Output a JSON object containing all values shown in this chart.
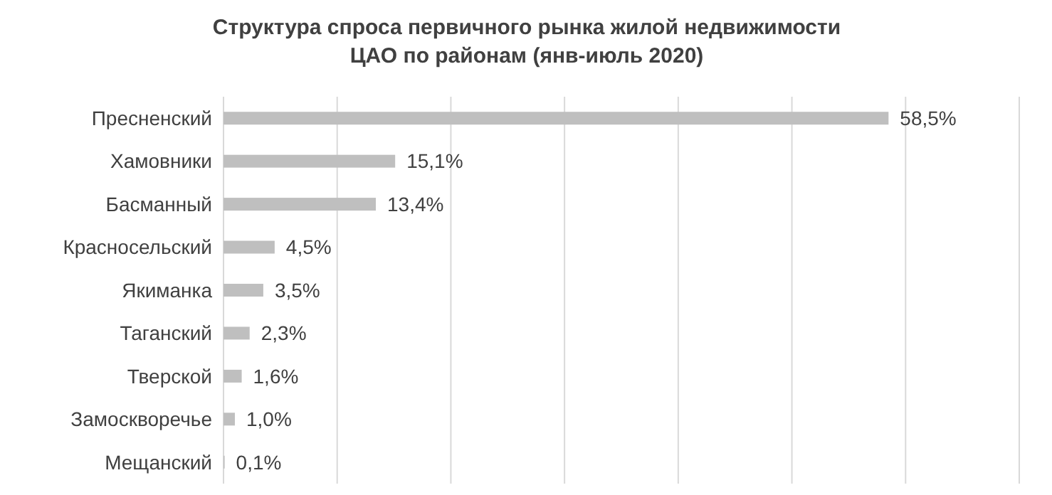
{
  "chart_data": {
    "type": "bar",
    "orientation": "horizontal",
    "title": "Структура спроса первичного рынка жилой недвижимости\nЦАО по районам (янв-июль 2020)",
    "categories": [
      "Пресненский",
      "Хамовники",
      "Басманный",
      "Красносельский",
      "Якиманка",
      "Таганский",
      "Тверской",
      "Замоскворечье",
      "Мещанский"
    ],
    "values": [
      58.5,
      15.1,
      13.4,
      4.5,
      3.5,
      2.3,
      1.6,
      1.0,
      0.1
    ],
    "value_labels": [
      "58,5%",
      "15,1%",
      "13,4%",
      "4,5%",
      "3,5%",
      "2,3%",
      "1,6%",
      "1,0%",
      "0,1%"
    ],
    "color": "#bfbfbf",
    "xlim": [
      0,
      70
    ],
    "xticks": [
      {
        "value": 0,
        "label": null
      },
      {
        "value": 10,
        "label": null
      },
      {
        "value": 20,
        "label": null
      },
      {
        "value": 30,
        "label": null
      },
      {
        "value": 40,
        "label": null
      },
      {
        "value": 50,
        "label": null
      },
      {
        "value": 60,
        "label": null
      },
      {
        "value": 70,
        "label": null
      }
    ],
    "grid": "x",
    "tick_labels": "y"
  }
}
